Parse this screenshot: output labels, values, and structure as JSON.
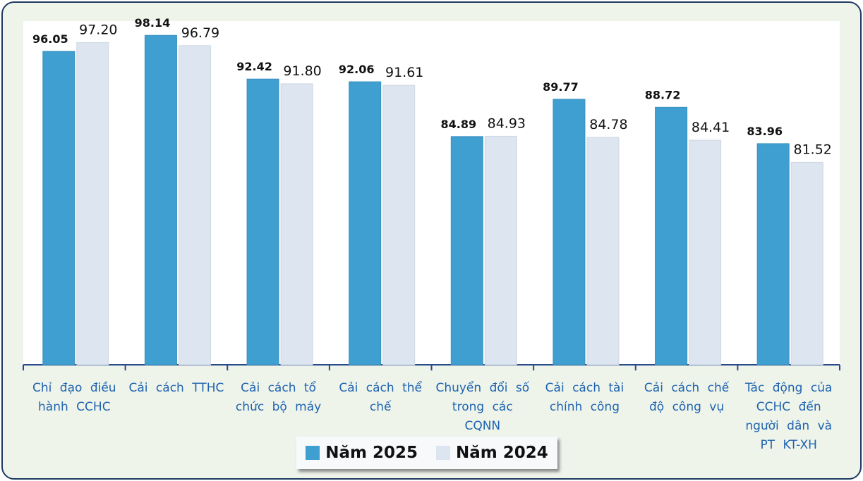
{
  "chart_data": {
    "type": "bar",
    "categories": [
      "Chỉ đạo điều hành CCHC",
      "Cải cách TTHC",
      "Cải cách tổ chức bộ máy",
      "Cải cách thể chế",
      "Chuyển đổi số trong các CQNN",
      "Cải cách tài chính công",
      "Cải cách chế độ công vụ",
      "Tác động của CCHC đến người dân và PT KT-XH"
    ],
    "series": [
      {
        "name": "Năm 2025",
        "color": "#3f9fd0",
        "values": [
          96.05,
          98.14,
          92.42,
          92.06,
          84.89,
          89.77,
          88.72,
          83.96
        ],
        "value_labels": [
          "96.05",
          "98.14",
          "92.42",
          "92.06",
          "84.89",
          "89.77",
          "88.72",
          "83.96"
        ]
      },
      {
        "name": "Năm 2024",
        "color": "#dce5f0",
        "values": [
          97.2,
          96.79,
          91.8,
          91.61,
          84.93,
          84.78,
          84.41,
          81.52
        ],
        "value_labels": [
          "97.20",
          "96.79",
          "91.80",
          "91.61",
          "84.93",
          "84.78",
          "84.41",
          "81.52"
        ]
      }
    ],
    "ylim": [
      55,
      100
    ],
    "legend": "bottom"
  }
}
